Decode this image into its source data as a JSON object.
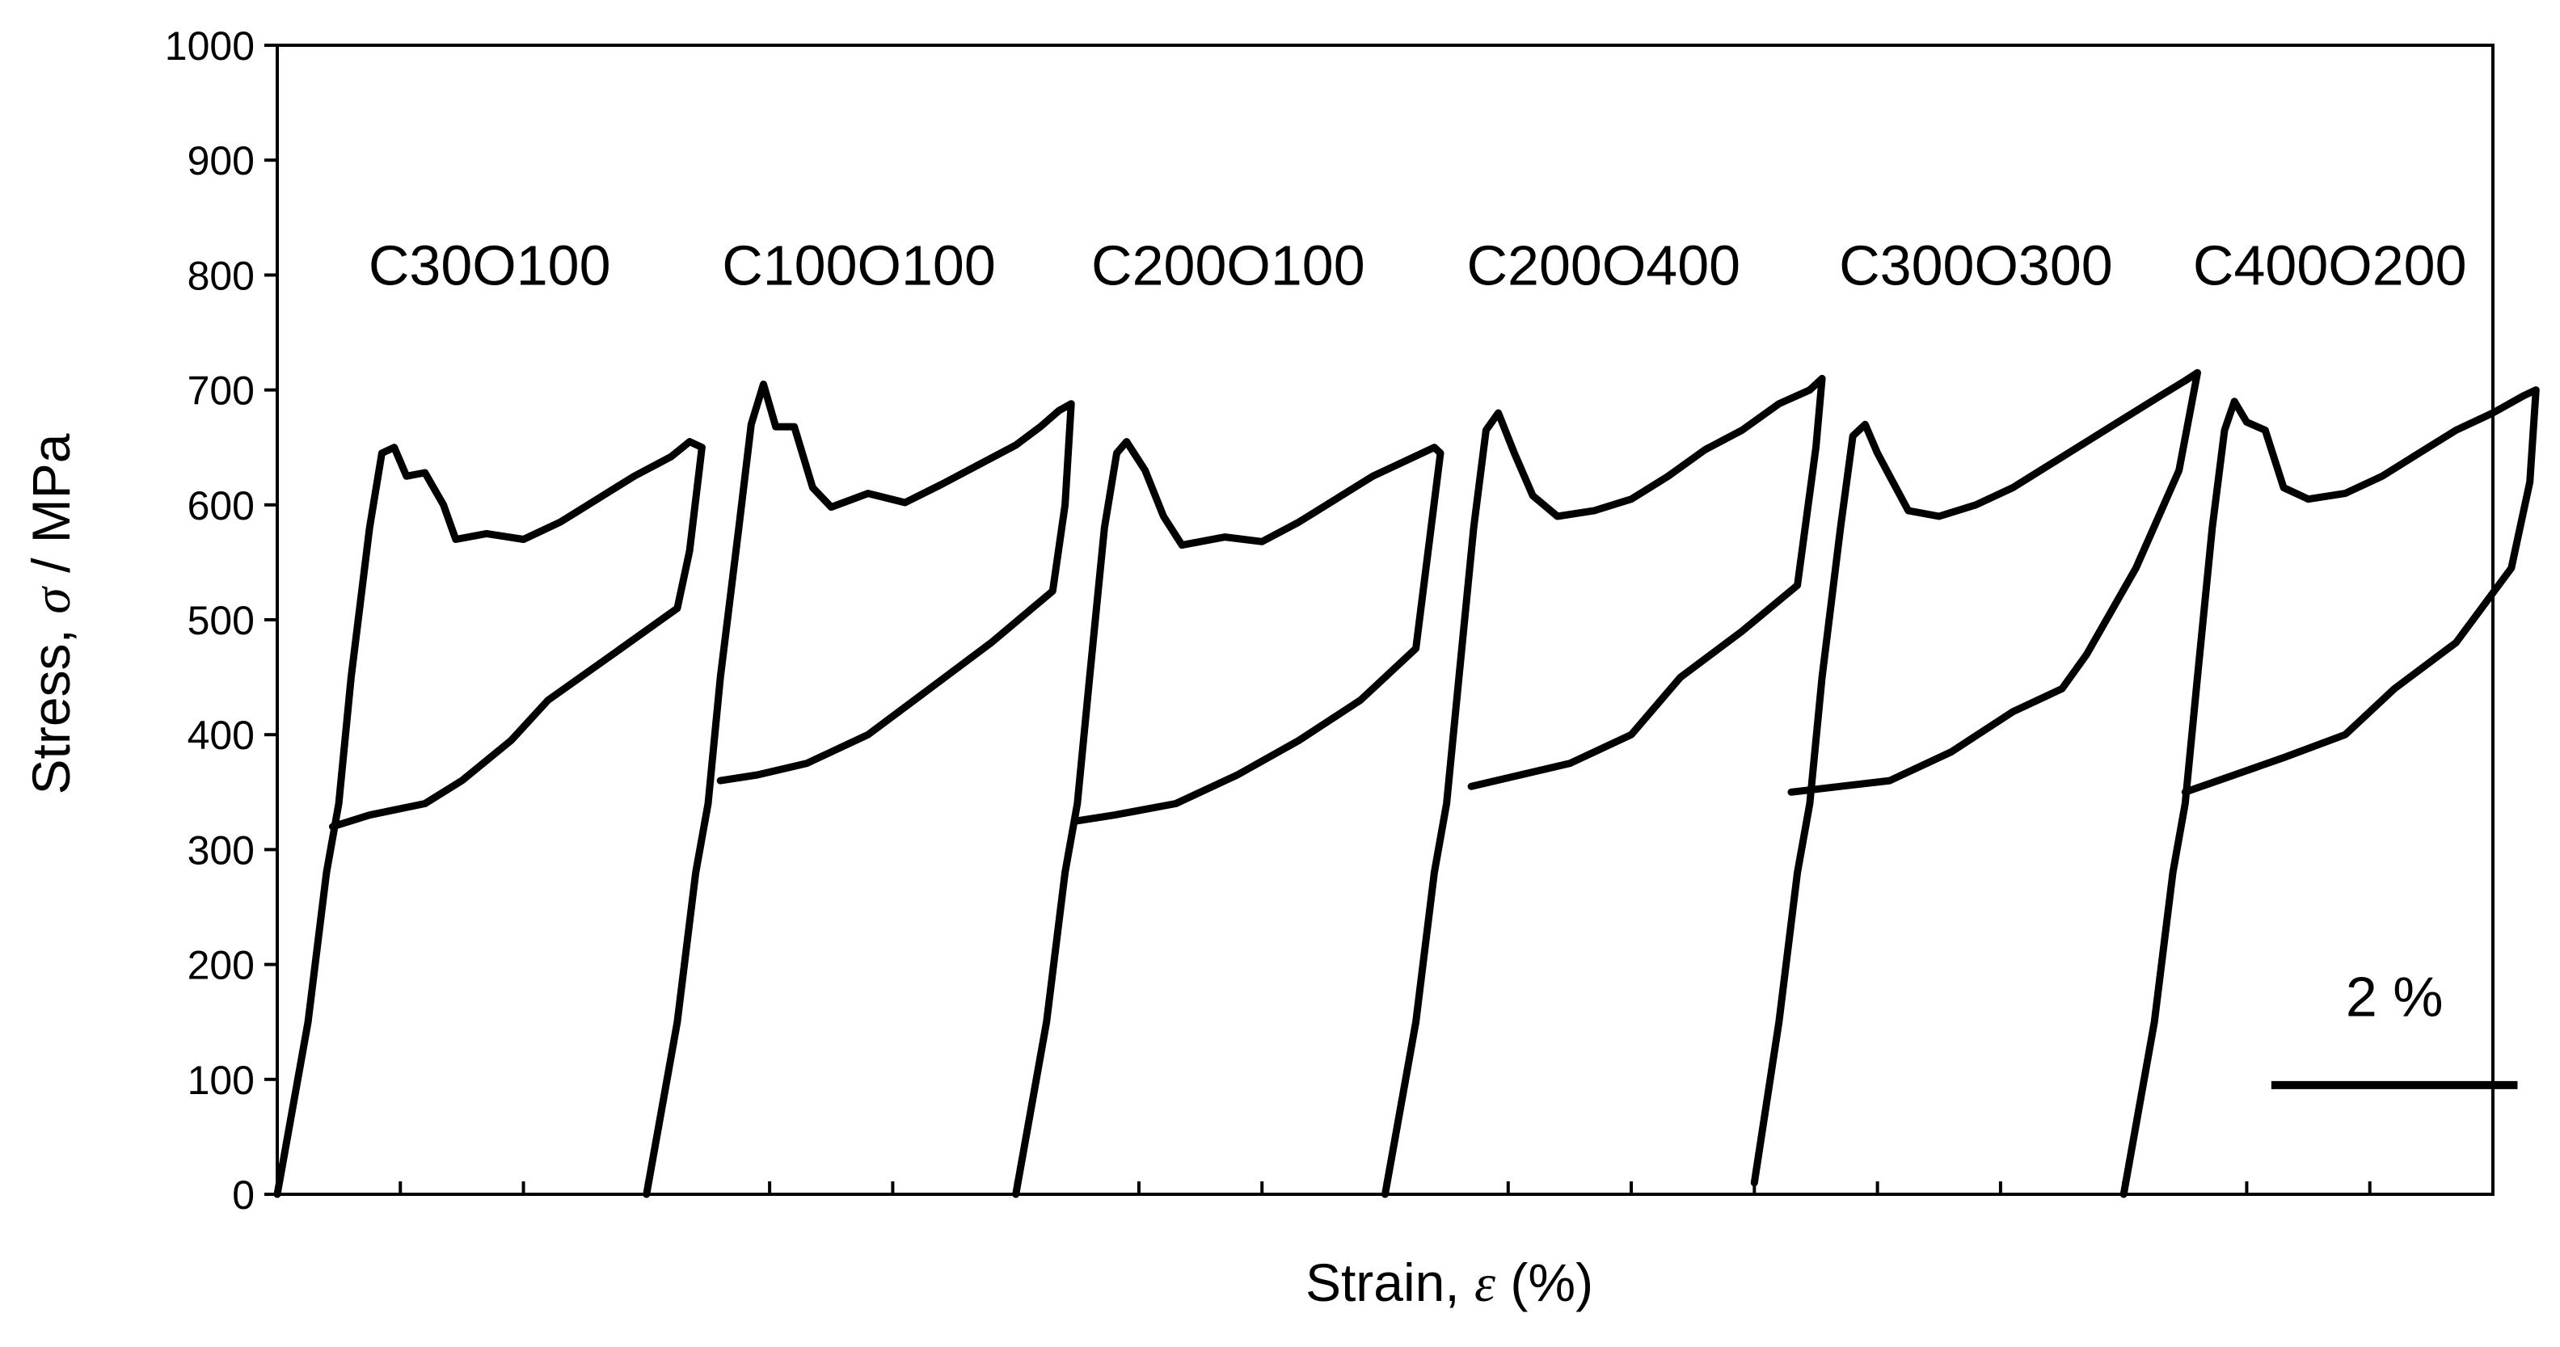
{
  "chart_data": {
    "type": "line",
    "title": "",
    "xlabel": "Strain, ε (%)",
    "xlabel_parts": {
      "prefix": "Strain, ",
      "symbol": "ε",
      "suffix": " (%)"
    },
    "ylabel": "Stress, σ / MPa",
    "ylabel_parts": {
      "prefix": "Stress, ",
      "symbol": "σ",
      "suffix": " / MPa"
    },
    "ylim": [
      0,
      1000
    ],
    "xlim": [
      0,
      18
    ],
    "y_ticks": [
      "0",
      "100",
      "200",
      "300",
      "400",
      "500",
      "600",
      "700",
      "800",
      "900",
      "1000"
    ],
    "x_tick_labels_shown": false,
    "grid": false,
    "legend": "none",
    "scale_bar": {
      "label": "2 %",
      "strain": 2
    },
    "series": [
      {
        "name": "C30O100",
        "points": [
          [
            0,
            0
          ],
          [
            0.25,
            150
          ],
          [
            0.4,
            280
          ],
          [
            0.5,
            340
          ],
          [
            0.6,
            450
          ],
          [
            0.75,
            580
          ],
          [
            0.85,
            645
          ],
          [
            0.95,
            650
          ],
          [
            1.05,
            625
          ],
          [
            1.2,
            628
          ],
          [
            1.35,
            600
          ],
          [
            1.45,
            570
          ],
          [
            1.7,
            575
          ],
          [
            2.0,
            570
          ],
          [
            2.3,
            585
          ],
          [
            2.6,
            605
          ],
          [
            2.9,
            625
          ],
          [
            3.2,
            642
          ],
          [
            3.35,
            655
          ],
          [
            3.45,
            650
          ],
          [
            3.35,
            560
          ],
          [
            3.25,
            510
          ],
          [
            2.7,
            468
          ],
          [
            2.2,
            430
          ],
          [
            1.9,
            395
          ],
          [
            1.5,
            360
          ],
          [
            1.2,
            340
          ],
          [
            0.75,
            330
          ],
          [
            0.45,
            320
          ]
        ]
      },
      {
        "name": "C100O100",
        "points": [
          [
            3.0,
            0
          ],
          [
            3.25,
            150
          ],
          [
            3.4,
            280
          ],
          [
            3.5,
            340
          ],
          [
            3.6,
            450
          ],
          [
            3.75,
            580
          ],
          [
            3.85,
            670
          ],
          [
            3.95,
            705
          ],
          [
            4.05,
            668
          ],
          [
            4.2,
            668
          ],
          [
            4.35,
            615
          ],
          [
            4.5,
            598
          ],
          [
            4.8,
            610
          ],
          [
            5.1,
            602
          ],
          [
            5.4,
            618
          ],
          [
            5.7,
            635
          ],
          [
            6.0,
            652
          ],
          [
            6.2,
            668
          ],
          [
            6.35,
            682
          ],
          [
            6.45,
            688
          ],
          [
            6.4,
            600
          ],
          [
            6.3,
            525
          ],
          [
            5.8,
            480
          ],
          [
            5.3,
            440
          ],
          [
            4.8,
            400
          ],
          [
            4.3,
            375
          ],
          [
            3.9,
            365
          ],
          [
            3.6,
            360
          ]
        ]
      },
      {
        "name": "C200O100",
        "points": [
          [
            6.0,
            0
          ],
          [
            6.25,
            150
          ],
          [
            6.4,
            280
          ],
          [
            6.5,
            340
          ],
          [
            6.6,
            450
          ],
          [
            6.72,
            580
          ],
          [
            6.82,
            645
          ],
          [
            6.9,
            655
          ],
          [
            7.05,
            630
          ],
          [
            7.2,
            590
          ],
          [
            7.35,
            565
          ],
          [
            7.7,
            572
          ],
          [
            8.0,
            568
          ],
          [
            8.3,
            585
          ],
          [
            8.6,
            605
          ],
          [
            8.9,
            625
          ],
          [
            9.2,
            640
          ],
          [
            9.4,
            650
          ],
          [
            9.45,
            645
          ],
          [
            9.35,
            560
          ],
          [
            9.25,
            475
          ],
          [
            8.8,
            430
          ],
          [
            8.3,
            395
          ],
          [
            7.8,
            365
          ],
          [
            7.3,
            340
          ],
          [
            6.8,
            330
          ],
          [
            6.5,
            325
          ]
        ]
      },
      {
        "name": "C200O400",
        "points": [
          [
            9.0,
            0
          ],
          [
            9.25,
            150
          ],
          [
            9.4,
            280
          ],
          [
            9.5,
            340
          ],
          [
            9.6,
            450
          ],
          [
            9.72,
            580
          ],
          [
            9.82,
            665
          ],
          [
            9.92,
            680
          ],
          [
            10.05,
            645
          ],
          [
            10.2,
            608
          ],
          [
            10.4,
            590
          ],
          [
            10.7,
            595
          ],
          [
            11.0,
            605
          ],
          [
            11.3,
            625
          ],
          [
            11.6,
            648
          ],
          [
            11.9,
            665
          ],
          [
            12.2,
            688
          ],
          [
            12.45,
            700
          ],
          [
            12.55,
            710
          ],
          [
            12.5,
            650
          ],
          [
            12.35,
            530
          ],
          [
            11.9,
            490
          ],
          [
            11.4,
            450
          ],
          [
            11.0,
            400
          ],
          [
            10.5,
            375
          ],
          [
            10.1,
            365
          ],
          [
            9.7,
            355
          ]
        ]
      },
      {
        "name": "C300O300",
        "points": [
          [
            12.0,
            10
          ],
          [
            12.2,
            150
          ],
          [
            12.35,
            280
          ],
          [
            12.45,
            340
          ],
          [
            12.55,
            450
          ],
          [
            12.7,
            580
          ],
          [
            12.8,
            660
          ],
          [
            12.9,
            670
          ],
          [
            13.0,
            645
          ],
          [
            13.1,
            625
          ],
          [
            13.25,
            595
          ],
          [
            13.5,
            590
          ],
          [
            13.8,
            600
          ],
          [
            14.1,
            615
          ],
          [
            14.4,
            635
          ],
          [
            14.7,
            655
          ],
          [
            15.0,
            675
          ],
          [
            15.3,
            695
          ],
          [
            15.5,
            708
          ],
          [
            15.6,
            715
          ],
          [
            15.45,
            630
          ],
          [
            15.1,
            545
          ],
          [
            14.7,
            470
          ],
          [
            14.5,
            440
          ],
          [
            14.1,
            420
          ],
          [
            13.6,
            385
          ],
          [
            13.1,
            360
          ],
          [
            12.7,
            355
          ],
          [
            12.3,
            350
          ]
        ]
      },
      {
        "name": "C400O200",
        "points": [
          [
            15.0,
            0
          ],
          [
            15.25,
            150
          ],
          [
            15.4,
            280
          ],
          [
            15.5,
            340
          ],
          [
            15.6,
            450
          ],
          [
            15.72,
            580
          ],
          [
            15.82,
            665
          ],
          [
            15.9,
            690
          ],
          [
            16.0,
            672
          ],
          [
            16.15,
            665
          ],
          [
            16.3,
            615
          ],
          [
            16.5,
            605
          ],
          [
            16.8,
            610
          ],
          [
            17.1,
            625
          ],
          [
            17.4,
            645
          ],
          [
            17.7,
            665
          ],
          [
            18.0,
            680
          ],
          [
            18.25,
            695
          ],
          [
            18.35,
            700
          ],
          [
            18.3,
            620
          ],
          [
            18.15,
            545
          ],
          [
            17.7,
            480
          ],
          [
            17.2,
            440
          ],
          [
            16.8,
            400
          ],
          [
            16.3,
            380
          ],
          [
            15.9,
            365
          ],
          [
            15.5,
            350
          ]
        ]
      }
    ]
  }
}
